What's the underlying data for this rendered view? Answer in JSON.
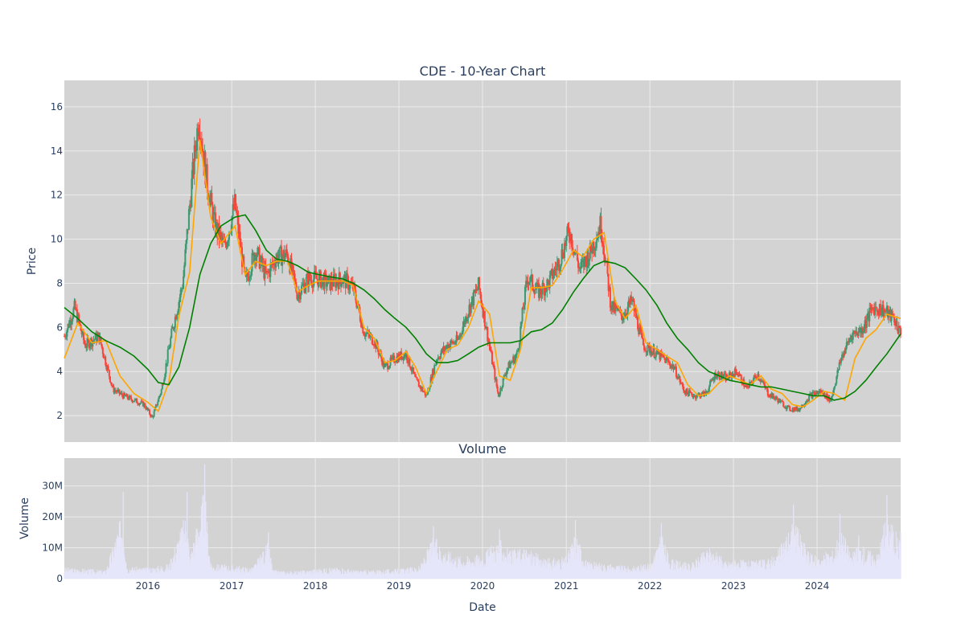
{
  "chart_data": [
    {
      "type": "candlestick",
      "title": "CDE - 10-Year Chart",
      "ylabel": "Price",
      "xlabel": "",
      "ylim": [
        0.8,
        17.2
      ],
      "yticks": [
        2,
        4,
        6,
        8,
        10,
        12,
        14,
        16
      ],
      "xrange": [
        "2015-01-01",
        "2024-12-31"
      ],
      "xticks": [
        "2016",
        "2017",
        "2018",
        "2019",
        "2020",
        "2021",
        "2022",
        "2023",
        "2024"
      ],
      "grid": true,
      "legend": "none",
      "colors": {
        "up": "#3d9970",
        "down": "#ff4136",
        "ma_fast": "#ffa500",
        "ma_slow": "#008000",
        "background": "#d3d3d3",
        "grid": "#ebebeb"
      },
      "series": [
        {
          "kind": "close",
          "x": [
            "2015-01-01",
            "2015-02-15",
            "2015-04-01",
            "2015-06-01",
            "2015-08-01",
            "2015-09-15",
            "2015-11-01",
            "2015-12-15",
            "2016-01-20",
            "2016-03-01",
            "2016-04-15",
            "2016-06-01",
            "2016-07-10",
            "2016-08-10",
            "2016-09-15",
            "2016-10-20",
            "2016-12-01",
            "2017-01-15",
            "2017-03-01",
            "2017-04-15",
            "2017-06-01",
            "2017-07-15",
            "2017-09-01",
            "2017-10-15",
            "2017-12-01",
            "2018-01-15",
            "2018-03-01",
            "2018-05-01",
            "2018-06-15",
            "2018-08-01",
            "2018-09-15",
            "2018-11-01",
            "2018-12-15",
            "2019-02-01",
            "2019-03-15",
            "2019-05-01",
            "2019-06-15",
            "2019-08-01",
            "2019-09-15",
            "2019-11-01",
            "2019-12-15",
            "2020-01-20",
            "2020-03-10",
            "2020-04-15",
            "2020-06-01",
            "2020-07-15",
            "2020-09-01",
            "2020-10-15",
            "2020-12-01",
            "2021-01-15",
            "2021-03-01",
            "2021-04-15",
            "2021-06-01",
            "2021-07-15",
            "2021-09-01",
            "2021-10-15",
            "2021-12-01",
            "2022-01-15",
            "2022-03-01",
            "2022-04-15",
            "2022-06-01",
            "2022-07-15",
            "2022-09-01",
            "2022-10-15",
            "2022-12-01",
            "2023-01-15",
            "2023-03-01",
            "2023-04-15",
            "2023-06-01",
            "2023-07-15",
            "2023-09-01",
            "2023-10-15",
            "2023-12-01",
            "2024-01-15",
            "2024-03-01",
            "2024-04-15",
            "2024-06-01",
            "2024-07-15",
            "2024-09-01",
            "2024-10-15",
            "2024-12-01",
            "2024-12-31"
          ],
          "y": [
            5.6,
            6.9,
            5.2,
            5.6,
            3.2,
            2.9,
            2.7,
            2.5,
            1.9,
            3.2,
            5.8,
            8.0,
            12.5,
            15.6,
            12.5,
            10.6,
            9.6,
            11.6,
            8.0,
            9.5,
            8.3,
            9.2,
            9.3,
            7.5,
            8.2,
            8.2,
            8.0,
            8.2,
            7.8,
            5.8,
            5.4,
            4.2,
            4.6,
            4.8,
            3.6,
            2.9,
            4.6,
            5.2,
            5.4,
            6.8,
            7.9,
            5.8,
            2.9,
            4.1,
            4.8,
            8.3,
            7.6,
            8.0,
            9.0,
            10.4,
            8.6,
            9.4,
            10.7,
            7.0,
            6.5,
            7.2,
            5.2,
            4.9,
            4.6,
            4.2,
            3.1,
            2.9,
            3.0,
            3.9,
            3.7,
            4.0,
            3.2,
            3.9,
            3.0,
            2.7,
            2.3,
            2.3,
            2.9,
            3.1,
            2.7,
            4.6,
            5.7,
            5.9,
            6.9,
            6.8,
            6.4,
            5.7
          ]
        },
        {
          "kind": "ma_fast",
          "x": [
            "2015-01-01",
            "2015-03-01",
            "2015-05-01",
            "2015-07-01",
            "2015-09-01",
            "2015-11-01",
            "2016-01-01",
            "2016-02-15",
            "2016-04-01",
            "2016-05-15",
            "2016-07-01",
            "2016-08-15",
            "2016-10-01",
            "2016-11-15",
            "2017-01-15",
            "2017-03-01",
            "2017-04-15",
            "2017-06-01",
            "2017-07-15",
            "2017-09-01",
            "2017-10-15",
            "2017-12-01",
            "2018-01-15",
            "2018-03-01",
            "2018-05-01",
            "2018-06-15",
            "2018-08-01",
            "2018-09-15",
            "2018-11-01",
            "2018-12-15",
            "2019-02-01",
            "2019-03-15",
            "2019-05-01",
            "2019-06-15",
            "2019-08-01",
            "2019-09-15",
            "2019-11-01",
            "2019-12-15",
            "2020-02-01",
            "2020-03-15",
            "2020-05-01",
            "2020-06-15",
            "2020-08-01",
            "2020-09-15",
            "2020-11-01",
            "2020-12-15",
            "2021-02-01",
            "2021-03-15",
            "2021-05-01",
            "2021-06-15",
            "2021-08-01",
            "2021-09-15",
            "2021-11-01",
            "2021-12-15",
            "2022-02-01",
            "2022-03-15",
            "2022-05-01",
            "2022-06-15",
            "2022-08-01",
            "2022-09-15",
            "2022-11-01",
            "2022-12-15",
            "2023-02-01",
            "2023-03-15",
            "2023-05-01",
            "2023-06-15",
            "2023-08-01",
            "2023-09-15",
            "2023-11-01",
            "2023-12-15",
            "2024-02-01",
            "2024-03-15",
            "2024-05-01",
            "2024-06-15",
            "2024-08-01",
            "2024-09-15",
            "2024-11-01",
            "2024-12-31"
          ],
          "y": [
            4.6,
            6.2,
            5.3,
            5.4,
            3.8,
            3.0,
            2.6,
            2.2,
            3.5,
            6.5,
            8.5,
            14.5,
            11.0,
            9.8,
            10.6,
            8.4,
            9.0,
            8.8,
            9.0,
            9.0,
            7.6,
            7.9,
            8.1,
            8.1,
            8.1,
            7.9,
            6.0,
            5.5,
            4.4,
            4.5,
            4.9,
            4.2,
            3.0,
            4.0,
            5.0,
            5.2,
            6.0,
            7.2,
            6.6,
            3.8,
            3.6,
            5.0,
            7.8,
            7.8,
            7.9,
            8.6,
            9.5,
            9.2,
            10.0,
            10.3,
            7.2,
            6.4,
            7.0,
            5.3,
            5.0,
            4.7,
            4.4,
            3.4,
            2.9,
            3.0,
            3.5,
            3.8,
            3.6,
            3.4,
            3.8,
            3.2,
            3.0,
            2.5,
            2.4,
            2.7,
            3.1,
            3.0,
            2.7,
            4.6,
            5.5,
            5.9,
            6.6,
            6.4
          ]
        },
        {
          "kind": "ma_slow",
          "x": [
            "2015-01-01",
            "2015-03-01",
            "2015-05-01",
            "2015-07-01",
            "2015-09-01",
            "2015-11-01",
            "2016-01-01",
            "2016-02-15",
            "2016-04-01",
            "2016-05-15",
            "2016-07-01",
            "2016-08-15",
            "2016-10-01",
            "2016-11-15",
            "2017-01-15",
            "2017-03-01",
            "2017-04-15",
            "2017-06-01",
            "2017-07-15",
            "2017-09-01",
            "2017-10-15",
            "2017-12-01",
            "2018-01-15",
            "2018-03-01",
            "2018-05-01",
            "2018-06-15",
            "2018-08-01",
            "2018-09-15",
            "2018-11-01",
            "2018-12-15",
            "2019-02-01",
            "2019-03-15",
            "2019-05-01",
            "2019-06-15",
            "2019-08-01",
            "2019-09-15",
            "2019-11-01",
            "2019-12-15",
            "2020-02-01",
            "2020-03-15",
            "2020-05-01",
            "2020-06-15",
            "2020-08-01",
            "2020-09-15",
            "2020-11-01",
            "2020-12-15",
            "2021-02-01",
            "2021-03-15",
            "2021-05-01",
            "2021-06-15",
            "2021-08-01",
            "2021-09-15",
            "2021-11-01",
            "2021-12-15",
            "2022-02-01",
            "2022-03-15",
            "2022-05-01",
            "2022-06-15",
            "2022-08-01",
            "2022-09-15",
            "2022-11-01",
            "2022-12-15",
            "2023-02-01",
            "2023-03-15",
            "2023-05-01",
            "2023-06-15",
            "2023-08-01",
            "2023-09-15",
            "2023-11-01",
            "2023-12-15",
            "2024-02-01",
            "2024-03-15",
            "2024-05-01",
            "2024-06-15",
            "2024-08-01",
            "2024-09-15",
            "2024-11-01",
            "2024-12-31"
          ],
          "y": [
            6.9,
            6.4,
            5.8,
            5.4,
            5.1,
            4.7,
            4.1,
            3.5,
            3.4,
            4.2,
            6.0,
            8.4,
            9.8,
            10.6,
            11.0,
            11.1,
            10.4,
            9.5,
            9.1,
            9.0,
            8.8,
            8.5,
            8.4,
            8.3,
            8.2,
            8.0,
            7.7,
            7.3,
            6.8,
            6.4,
            6.0,
            5.5,
            4.8,
            4.4,
            4.4,
            4.5,
            4.8,
            5.1,
            5.3,
            5.3,
            5.3,
            5.4,
            5.8,
            5.9,
            6.2,
            6.8,
            7.6,
            8.2,
            8.8,
            9.0,
            8.9,
            8.7,
            8.2,
            7.7,
            7.0,
            6.2,
            5.5,
            5.0,
            4.4,
            4.0,
            3.8,
            3.6,
            3.5,
            3.4,
            3.3,
            3.3,
            3.2,
            3.1,
            3.0,
            2.9,
            2.9,
            2.7,
            2.8,
            3.1,
            3.6,
            4.2,
            4.8,
            5.7
          ]
        }
      ]
    },
    {
      "type": "bar",
      "title": "Volume",
      "ylabel": "Volume",
      "xlabel": "Date",
      "ylim": [
        0,
        39000000
      ],
      "yticks": [
        0,
        10000000,
        20000000,
        30000000
      ],
      "ytick_labels": [
        "0",
        "10M",
        "20M",
        "30M"
      ],
      "xticks": [
        "2016",
        "2017",
        "2018",
        "2019",
        "2020",
        "2021",
        "2022",
        "2023",
        "2024"
      ],
      "grid": true,
      "colors": {
        "bar": "#e6e6fa",
        "background": "#d3d3d3",
        "grid": "#ebebeb"
      },
      "x": [
        "2015-01-01",
        "2015-04-01",
        "2015-07-01",
        "2015-09-15",
        "2015-10-01",
        "2016-01-01",
        "2016-04-01",
        "2016-06-20",
        "2016-07-01",
        "2016-09-05",
        "2016-10-01",
        "2017-01-01",
        "2017-04-01",
        "2017-06-10",
        "2017-07-01",
        "2017-10-01",
        "2018-01-01",
        "2018-04-01",
        "2018-07-01",
        "2018-10-01",
        "2019-01-01",
        "2019-04-01",
        "2019-06-01",
        "2019-07-15",
        "2019-10-01",
        "2020-01-01",
        "2020-03-15",
        "2020-05-01",
        "2020-07-01",
        "2020-10-01",
        "2021-01-01",
        "2021-02-10",
        "2021-04-01",
        "2021-07-01",
        "2021-10-01",
        "2022-01-01",
        "2022-02-20",
        "2022-04-01",
        "2022-07-01",
        "2022-09-15",
        "2022-12-01",
        "2023-01-01",
        "2023-04-01",
        "2023-07-01",
        "2023-09-20",
        "2023-12-01",
        "2024-01-01",
        "2024-03-15",
        "2024-04-10",
        "2024-06-01",
        "2024-07-01",
        "2024-09-20",
        "2024-11-01",
        "2024-12-31"
      ],
      "values": [
        4500000,
        4000000,
        3500000,
        28000000,
        5000000,
        4500000,
        6000000,
        28000000,
        9000000,
        37000000,
        6000000,
        5500000,
        4500000,
        15000000,
        3500000,
        3000000,
        4000000,
        4500000,
        3500000,
        3500000,
        4000000,
        5000000,
        17000000,
        12000000,
        9000000,
        10000000,
        16000000,
        11000000,
        13000000,
        8000000,
        9000000,
        19000000,
        7000000,
        6000000,
        5000000,
        6000000,
        18000000,
        8000000,
        6000000,
        13000000,
        7000000,
        8000000,
        7000000,
        9000000,
        24000000,
        10000000,
        9000000,
        12000000,
        21000000,
        10000000,
        14000000,
        10000000,
        27000000,
        15000000
      ]
    }
  ]
}
